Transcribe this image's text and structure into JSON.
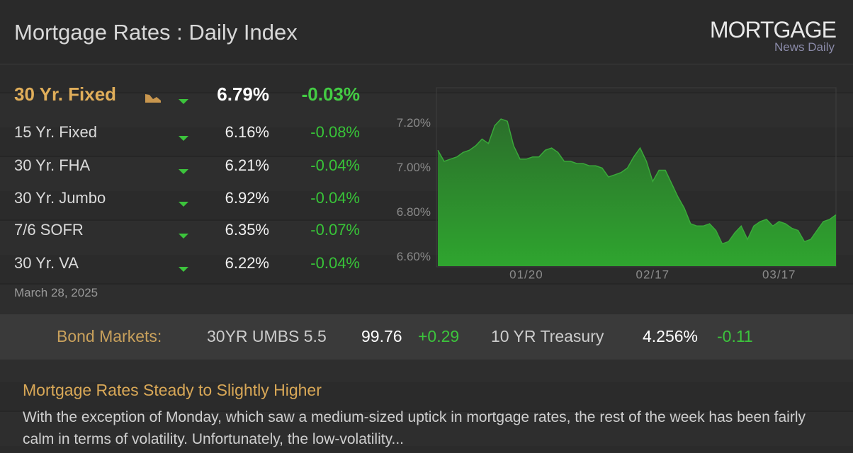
{
  "header": {
    "title": "Mortgage Rates : Daily Index",
    "logo": {
      "line1": "MORTGAGE",
      "line2": "News Daily"
    }
  },
  "rates": {
    "rows": [
      {
        "name": "30 Yr. Fixed",
        "rate": "6.79%",
        "change": "-0.03%"
      },
      {
        "name": "15 Yr. Fixed",
        "rate": "6.16%",
        "change": "-0.08%"
      },
      {
        "name": "30 Yr. FHA",
        "rate": "6.21%",
        "change": "-0.04%"
      },
      {
        "name": "30 Yr. Jumbo",
        "rate": "6.92%",
        "change": "-0.04%"
      },
      {
        "name": "7/6 SOFR",
        "rate": "6.35%",
        "change": "-0.07%"
      },
      {
        "name": "30 Yr. VA",
        "rate": "6.22%",
        "change": "-0.04%"
      }
    ],
    "date": "March 28, 2025"
  },
  "chart_data": {
    "type": "area",
    "categories": [
      null,
      null,
      null,
      null,
      null,
      null,
      null,
      null,
      null,
      null,
      null,
      null,
      null,
      null,
      "01/20",
      null,
      null,
      null,
      null,
      null,
      null,
      null,
      null,
      null,
      null,
      null,
      null,
      null,
      null,
      null,
      null,
      null,
      null,
      null,
      "02/17",
      null,
      null,
      null,
      null,
      null,
      null,
      null,
      null,
      null,
      null,
      null,
      null,
      null,
      null,
      null,
      null,
      null,
      null,
      null,
      "03/17",
      null,
      null,
      null,
      null,
      null,
      null,
      null,
      null,
      null
    ],
    "values": [
      7.08,
      7.03,
      7.04,
      7.05,
      7.07,
      7.08,
      7.1,
      7.13,
      7.11,
      7.19,
      7.22,
      7.21,
      7.1,
      7.04,
      7.04,
      7.05,
      7.05,
      7.08,
      7.09,
      7.07,
      7.03,
      7.03,
      7.02,
      7.02,
      7.01,
      7.01,
      7.0,
      6.96,
      6.97,
      6.98,
      7.0,
      7.05,
      7.09,
      7.03,
      6.94,
      6.99,
      6.99,
      6.93,
      6.87,
      6.82,
      6.75,
      6.74,
      6.74,
      6.75,
      6.72,
      6.66,
      6.67,
      6.71,
      6.74,
      6.68,
      6.74,
      6.76,
      6.77,
      6.74,
      6.76,
      6.75,
      6.73,
      6.72,
      6.67,
      6.68,
      6.72,
      6.76,
      6.77,
      6.79
    ],
    "color": "#3aa83a",
    "ylim": [
      6.56,
      7.36
    ],
    "yticks": [
      {
        "value": 6.6,
        "label": "6.60%"
      },
      {
        "value": 6.8,
        "label": "6.80%"
      },
      {
        "value": 7.0,
        "label": "7.00%"
      },
      {
        "value": 7.2,
        "label": "7.20%"
      }
    ],
    "grid": false
  },
  "bond_markets": {
    "label": "Bond Markets:",
    "items": [
      {
        "name": "30YR UMBS 5.5",
        "price": "99.76",
        "change": "+0.29"
      },
      {
        "name": "10 YR Treasury",
        "price": "4.256%",
        "change": "-0.11"
      }
    ]
  },
  "article": {
    "title": "Mortgage Rates Steady to Slightly Higher",
    "text": "With the exception of Monday, which saw a medium-sized uptick in mortgage rates, the rest of the week has been fairly calm in terms of volatility. Unfortunately, the low-volatility..."
  }
}
